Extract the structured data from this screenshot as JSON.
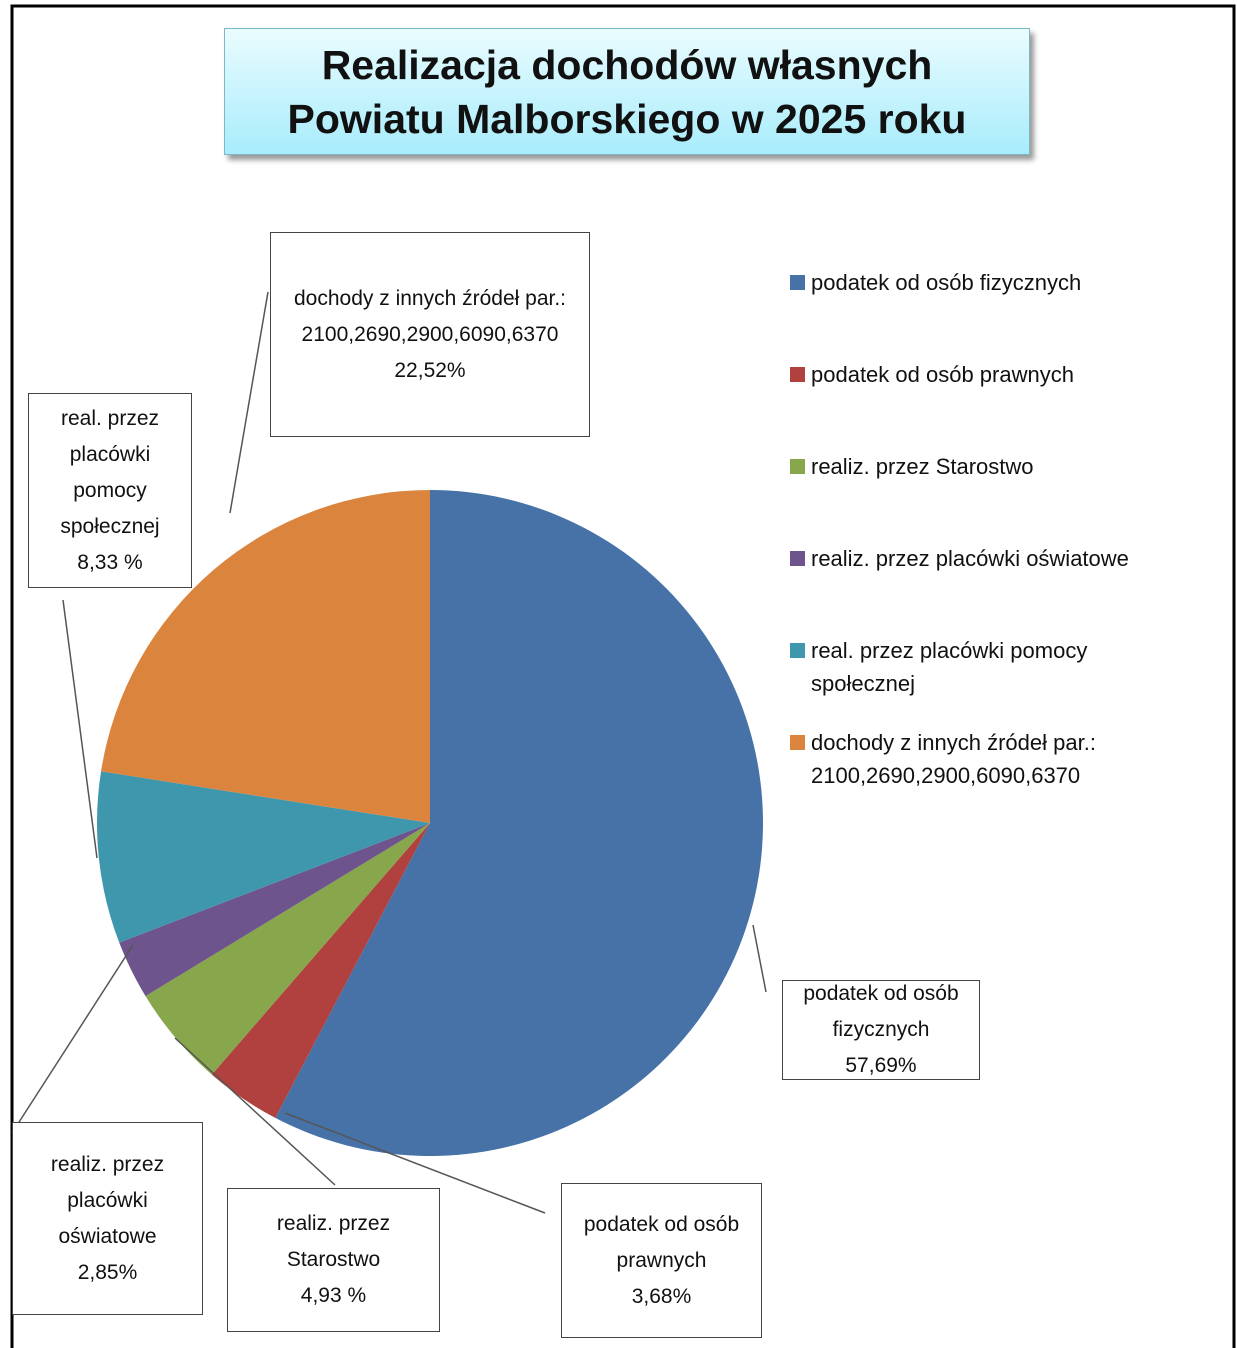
{
  "chart_data": {
    "type": "pie",
    "title": "Realizacja dochodów własnych Powiatu Malborskiego w   2025 roku",
    "categories": [
      "podatek od osób fizycznych",
      "podatek od osób prawnych",
      "realiz. przez Starostwo",
      "realiz. przez placówki oświatowe",
      "real. przez placówki pomocy społecznej",
      "dochody z innych źródeł par.: 2100,2690,2900,6090,6370"
    ],
    "values": [
      57.69,
      3.68,
      4.93,
      2.85,
      8.33,
      22.52
    ],
    "value_labels": [
      "57,69%",
      "3,68%",
      "4,93 %",
      "2,85%",
      "8,33 %",
      "22,52%"
    ],
    "colors": [
      "#4672a8",
      "#b0413e",
      "#88a64b",
      "#6e548d",
      "#3f97ae",
      "#db843d"
    ],
    "legend": "right"
  }
}
